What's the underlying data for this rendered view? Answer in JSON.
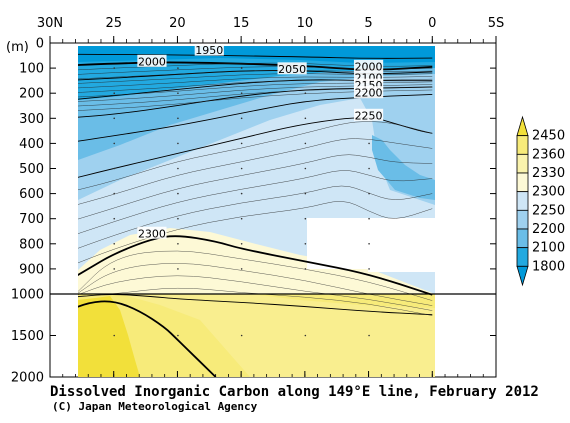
{
  "chart_data": {
    "type": "heatmap",
    "title": "Dissolved Inorganic Carbon along 149°E line, February 2012",
    "credit": "(C) Japan Meteorological Agency",
    "x_axis": {
      "ticks": [
        "30N",
        "25",
        "20",
        "15",
        "10",
        "5",
        "0",
        "5S"
      ],
      "tick_values": [
        30,
        25,
        20,
        15,
        10,
        5,
        0,
        -5
      ],
      "range": [
        30,
        -5
      ]
    },
    "y_axis": {
      "unit_label": "(m)",
      "upper_ticks": [
        "0",
        "100",
        "200",
        "300",
        "400",
        "500",
        "600",
        "700",
        "800",
        "900",
        "1000"
      ],
      "lower_ticks": [
        "1500",
        "2000"
      ],
      "upper_range": [
        0,
        1000
      ],
      "lower_range": [
        1000,
        2000
      ]
    },
    "colorbar": {
      "labels": [
        "2450",
        "2360",
        "2330",
        "2300",
        "2250",
        "2200",
        "2100",
        "1800"
      ],
      "colors": [
        "#f2e03a",
        "#f7eb7a",
        "#faf3ad",
        "#fdf9d6",
        "#cfe6f6",
        "#9fd1ef",
        "#6abde7",
        "#22a9e0",
        "#0099d9"
      ]
    },
    "contour_labels": [
      "1950",
      "2000",
      "2050",
      "2000",
      "2100",
      "2150",
      "2200",
      "2250",
      "2300"
    ],
    "contour_lines": [
      {
        "value": 1950,
        "points": [
          [
            29,
            45
          ],
          [
            20,
            47
          ],
          [
            10,
            55
          ],
          [
            5,
            62
          ],
          [
            0,
            60
          ]
        ]
      },
      {
        "value": 2000,
        "points": [
          [
            29,
            90
          ],
          [
            25,
            82
          ],
          [
            20,
            75
          ],
          [
            10,
            90
          ],
          [
            5,
            110
          ],
          [
            0,
            95
          ]
        ]
      },
      {
        "value": 2050,
        "points": [
          [
            29,
            150
          ],
          [
            25,
            140
          ],
          [
            20,
            125
          ],
          [
            15,
            110
          ],
          [
            10,
            110
          ],
          [
            5,
            125
          ],
          [
            0,
            115
          ]
        ]
      },
      {
        "value": 2100,
        "points": [
          [
            29,
            230
          ],
          [
            25,
            210
          ],
          [
            20,
            185
          ],
          [
            15,
            160
          ],
          [
            10,
            145
          ],
          [
            5,
            150
          ],
          [
            0,
            150
          ]
        ]
      },
      {
        "value": 2150,
        "points": [
          [
            29,
            300
          ],
          [
            25,
            285
          ],
          [
            20,
            250
          ],
          [
            15,
            210
          ],
          [
            10,
            185
          ],
          [
            5,
            180
          ],
          [
            0,
            175
          ]
        ]
      },
      {
        "value": 2200,
        "points": [
          [
            29,
            400
          ],
          [
            25,
            370
          ],
          [
            20,
            330
          ],
          [
            15,
            280
          ],
          [
            10,
            230
          ],
          [
            5,
            215
          ],
          [
            0,
            205
          ]
        ]
      },
      {
        "value": 2250,
        "points": [
          [
            29,
            550
          ],
          [
            25,
            500
          ],
          [
            20,
            440
          ],
          [
            15,
            380
          ],
          [
            10,
            320
          ],
          [
            5,
            290
          ],
          [
            3,
            320
          ],
          [
            1,
            350
          ],
          [
            0,
            360
          ]
        ]
      },
      {
        "value": 2300,
        "points": [
          [
            29,
            960
          ],
          [
            27,
            900
          ],
          [
            25,
            840
          ],
          [
            22,
            780
          ],
          [
            20,
            765
          ],
          [
            17,
            790
          ],
          [
            15,
            820
          ],
          [
            10,
            870
          ],
          [
            5,
            920
          ],
          [
            0,
            1010
          ]
        ]
      },
      {
        "value": 2330,
        "points": [
          [
            29,
            1050
          ],
          [
            27,
            1020
          ],
          [
            25,
            1000
          ],
          [
            22,
            1030
          ],
          [
            20,
            1060
          ],
          [
            15,
            1100
          ],
          [
            10,
            1150
          ],
          [
            5,
            1210
          ],
          [
            0,
            1250
          ]
        ]
      },
      {
        "value": 2360,
        "points": [
          [
            29,
            1230
          ],
          [
            27,
            1100
          ],
          [
            25,
            1080
          ],
          [
            23,
            1200
          ],
          [
            21,
            1400
          ],
          [
            20,
            1550
          ],
          [
            19,
            1700
          ],
          [
            18,
            1850
          ],
          [
            17,
            2000
          ]
        ]
      }
    ]
  }
}
